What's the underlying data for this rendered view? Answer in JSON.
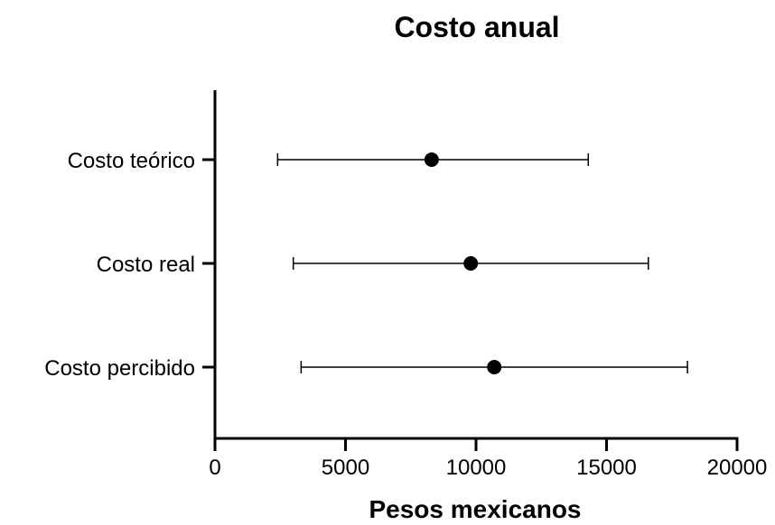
{
  "chart_data": {
    "type": "scatter",
    "title": "Costo anual",
    "xlabel": "Pesos mexicanos",
    "ylabel": "",
    "xlim": [
      0,
      20000
    ],
    "xticks": [
      0,
      5000,
      10000,
      15000,
      20000
    ],
    "xtick_labels": [
      "0",
      "5000",
      "10000",
      "15000",
      "20000"
    ],
    "grid": false,
    "orientation": "horizontal",
    "error_bars": true,
    "categories": [
      "Costo teórico",
      "Costo real",
      "Costo percibido"
    ],
    "series": [
      {
        "points": [
          {
            "category": "Costo teórico",
            "value": 8300,
            "low": 2400,
            "high": 14300
          },
          {
            "category": "Costo real",
            "value": 9800,
            "low": 3000,
            "high": 16600
          },
          {
            "category": "Costo percibido",
            "value": 10700,
            "low": 3300,
            "high": 18100
          }
        ]
      }
    ],
    "colors": {
      "marker": "#000000",
      "axis": "#000000"
    }
  }
}
